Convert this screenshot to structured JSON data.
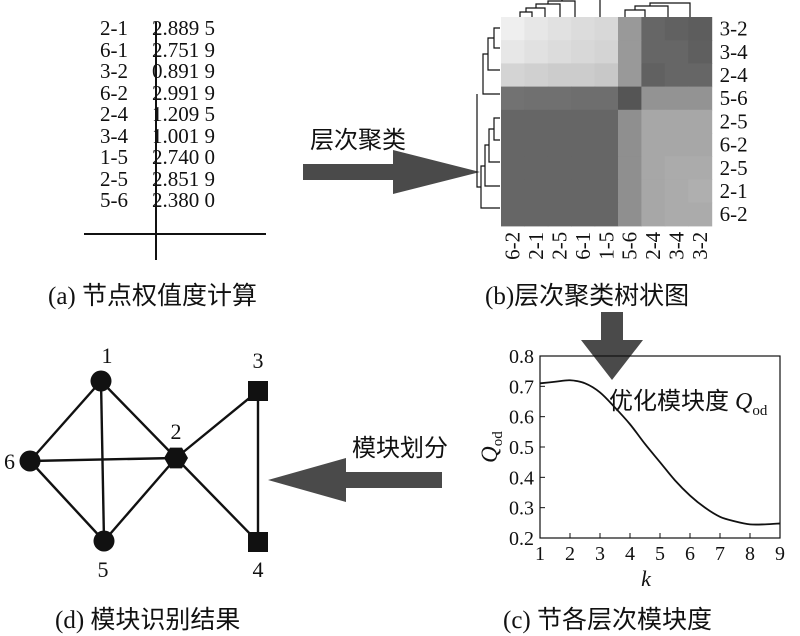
{
  "node_weight_table": {
    "rows": [
      {
        "node": "2-1",
        "weight": "2.889 5"
      },
      {
        "node": "6-1",
        "weight": "2.751 9"
      },
      {
        "node": "3-2",
        "weight": "0.891 9"
      },
      {
        "node": "6-2",
        "weight": "2.991 9"
      },
      {
        "node": "2-4",
        "weight": "1.209 5"
      },
      {
        "node": "3-4",
        "weight": "1.001 9"
      },
      {
        "node": "1-5",
        "weight": "2.740 0"
      },
      {
        "node": "2-5",
        "weight": "2.851 9"
      },
      {
        "node": "5-6",
        "weight": "2.380 0"
      }
    ]
  },
  "captions": {
    "a": "(a) 节点权值度计算",
    "b": "(b)层次聚类树状图",
    "c": "(c) 节各层次模块度",
    "d": "(d) 模块识别结果"
  },
  "arrows": {
    "cluster_label": "层次聚类",
    "partition_label": "模块划分",
    "optimize_label": "优化模块度",
    "optimize_symbol": "Q",
    "optimize_subscript": "od"
  },
  "heatmap": {
    "row_labels": [
      "3-2",
      "3-4",
      "2-4",
      "5-6",
      "2-5",
      "6-2",
      "2-5",
      "2-1",
      "6-2"
    ],
    "col_labels": [
      "6-2",
      "2-1",
      "2-5",
      "6-1",
      "1-5",
      "5-6",
      "2-4",
      "3-4",
      "3-2"
    ],
    "grid": [
      [
        0.97,
        0.93,
        0.9,
        0.88,
        0.86,
        0.55,
        0.3,
        0.28,
        0.26
      ],
      [
        0.93,
        0.9,
        0.88,
        0.86,
        0.84,
        0.55,
        0.3,
        0.3,
        0.27
      ],
      [
        0.84,
        0.82,
        0.8,
        0.8,
        0.78,
        0.55,
        0.28,
        0.3,
        0.3
      ],
      [
        0.36,
        0.35,
        0.35,
        0.34,
        0.34,
        0.22,
        0.52,
        0.52,
        0.52
      ],
      [
        0.3,
        0.3,
        0.3,
        0.3,
        0.3,
        0.5,
        0.62,
        0.62,
        0.62
      ],
      [
        0.3,
        0.3,
        0.3,
        0.3,
        0.3,
        0.5,
        0.62,
        0.62,
        0.62
      ],
      [
        0.3,
        0.3,
        0.3,
        0.3,
        0.3,
        0.5,
        0.62,
        0.64,
        0.64
      ],
      [
        0.3,
        0.3,
        0.3,
        0.3,
        0.3,
        0.5,
        0.62,
        0.64,
        0.66
      ],
      [
        0.3,
        0.3,
        0.3,
        0.3,
        0.3,
        0.5,
        0.62,
        0.64,
        0.64
      ]
    ]
  },
  "chart_data": {
    "type": "line",
    "x": [
      1,
      1.5,
      2,
      2.5,
      3,
      3.5,
      4,
      4.5,
      5,
      5.5,
      6,
      6.5,
      7,
      7.5,
      8,
      8.5,
      9
    ],
    "y": [
      0.71,
      0.715,
      0.72,
      0.71,
      0.68,
      0.63,
      0.575,
      0.51,
      0.45,
      0.39,
      0.34,
      0.3,
      0.27,
      0.255,
      0.245,
      0.245,
      0.248
    ],
    "xlabel": "k",
    "ylabel": "Q",
    "ylabel_subscript": "od",
    "xlim": [
      1,
      9
    ],
    "ylim": [
      0.2,
      0.8
    ],
    "xticks": [
      "1",
      "2",
      "3",
      "4",
      "5",
      "6",
      "7",
      "8",
      "9"
    ],
    "yticks": [
      "0.2",
      "0.3",
      "0.4",
      "0.5",
      "0.6",
      "0.7",
      "0.8"
    ]
  },
  "network": {
    "nodes": [
      {
        "id": "1",
        "label": "1",
        "shape": "circle"
      },
      {
        "id": "2",
        "label": "2",
        "shape": "hexagon"
      },
      {
        "id": "3",
        "label": "3",
        "shape": "square"
      },
      {
        "id": "4",
        "label": "4",
        "shape": "square"
      },
      {
        "id": "5",
        "label": "5",
        "shape": "circle"
      },
      {
        "id": "6",
        "label": "6",
        "shape": "circle"
      }
    ],
    "edges": [
      [
        "6",
        "1"
      ],
      [
        "6",
        "2"
      ],
      [
        "6",
        "5"
      ],
      [
        "1",
        "2"
      ],
      [
        "1",
        "5"
      ],
      [
        "2",
        "5"
      ],
      [
        "2",
        "3"
      ],
      [
        "2",
        "4"
      ],
      [
        "3",
        "4"
      ]
    ]
  },
  "colors": {
    "arrow": "#4a4a4a",
    "ink": "#111111",
    "heatmap_dark": "#3c3c3c",
    "heatmap_light": "#f2f2f2"
  }
}
